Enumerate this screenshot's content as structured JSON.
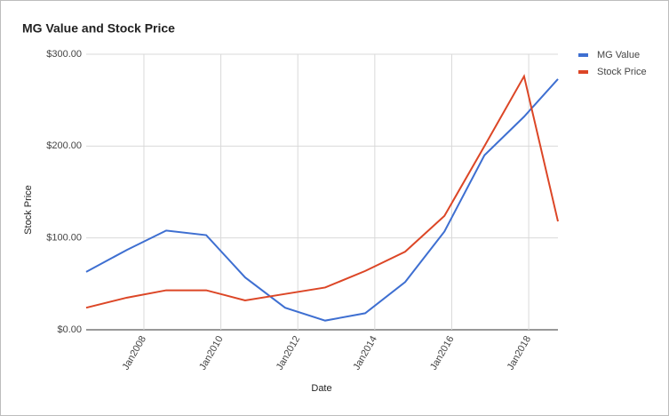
{
  "chart_data": {
    "type": "line",
    "title": "MG Value and Stock Price",
    "x_label": "Date",
    "y_label": "Stock Price",
    "x": [
      2006.5,
      2007.56,
      2008.58,
      2009.62,
      2010.63,
      2011.67,
      2012.71,
      2013.75,
      2014.79,
      2015.81,
      2016.85,
      2017.88,
      2018.76
    ],
    "series": [
      {
        "name": "MG Value",
        "color": "#3e6fd1",
        "values": [
          63,
          87,
          108,
          103,
          57,
          24,
          10,
          18,
          52,
          107,
          190,
          232,
          273
        ]
      },
      {
        "name": "Stock Price",
        "color": "#dc4626",
        "values": [
          24,
          35,
          43,
          43,
          32,
          39,
          46,
          64,
          85,
          124,
          200,
          276,
          118
        ]
      }
    ],
    "xlim": [
      2006.5,
      2018.76
    ],
    "xticks": [
      {
        "value": 2008,
        "label": "Jan2008"
      },
      {
        "value": 2010,
        "label": "Jan2010"
      },
      {
        "value": 2012,
        "label": "Jan2012"
      },
      {
        "value": 2014,
        "label": "Jan2014"
      },
      {
        "value": 2016,
        "label": "Jan2016"
      },
      {
        "value": 2018,
        "label": "Jan2018"
      }
    ],
    "ylim": [
      0,
      300
    ],
    "yticks": [
      {
        "value": 0,
        "label": "$0.00"
      },
      {
        "value": 100,
        "label": "$100.00"
      },
      {
        "value": 200,
        "label": "$200.00"
      },
      {
        "value": 300,
        "label": "$300.00"
      }
    ],
    "grid": true,
    "legend": "right"
  }
}
